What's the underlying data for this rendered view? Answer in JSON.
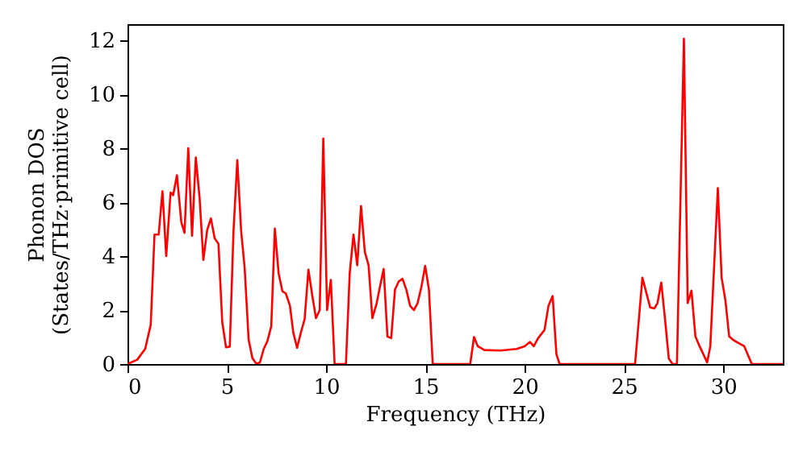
{
  "chart_data": {
    "type": "line",
    "xlabel": "Frequency (THz)",
    "ylabel": "Phonon DOS\n(States/THz·primitive cell)",
    "xlim": [
      0,
      33
    ],
    "ylim": [
      0,
      12.6
    ],
    "xticks": [
      0,
      5,
      10,
      15,
      20,
      25,
      30
    ],
    "yticks": [
      0,
      2,
      4,
      6,
      8,
      10,
      12
    ],
    "marker": "none",
    "line_style": "solid",
    "series": [
      {
        "color": "#ff0000",
        "x": [
          0,
          0.49,
          0.89,
          1.17,
          1.36,
          1.57,
          1.76,
          1.95,
          2.17,
          2.3,
          2.49,
          2.71,
          2.87,
          3.06,
          3.25,
          3.44,
          3.63,
          3.82,
          4.01,
          4.2,
          4.39,
          4.58,
          4.77,
          4.96,
          5.15,
          5.34,
          5.53,
          5.72,
          5.9,
          6.1,
          6.29,
          6.5,
          6.67,
          6.86,
          7.05,
          7.24,
          7.42,
          7.61,
          7.8,
          7.97,
          8.18,
          8.35,
          8.54,
          8.73,
          8.92,
          9.11,
          9.3,
          9.49,
          9.68,
          9.86,
          10.05,
          10.24,
          10.43,
          11.0,
          11.19,
          11.38,
          11.57,
          11.76,
          11.95,
          12.14,
          12.33,
          12.55,
          12.74,
          12.9,
          13.09,
          13.28,
          13.47,
          13.66,
          13.85,
          14.04,
          14.23,
          14.42,
          14.61,
          14.8,
          14.99,
          15.18,
          15.37,
          17.26,
          17.45,
          17.64,
          17.97,
          18.78,
          19.6,
          20.0,
          20.27,
          20.46,
          20.68,
          21.0,
          21.2,
          21.41,
          21.6,
          21.76,
          25.56,
          25.93,
          26.32,
          26.53,
          26.69,
          26.88,
          27.07,
          27.26,
          27.45,
          27.67,
          28.02,
          28.21,
          28.4,
          28.6,
          28.81,
          29.19,
          29.35,
          29.73,
          29.92,
          30.11,
          30.3,
          30.49,
          30.71,
          31.06,
          31.44,
          33.0
        ],
        "values": [
          0,
          0.16,
          0.56,
          1.46,
          4.8,
          4.8,
          6.4,
          4.0,
          6.36,
          6.26,
          7.0,
          5.26,
          4.86,
          8.0,
          4.76,
          7.66,
          6.16,
          3.86,
          4.96,
          5.4,
          4.66,
          4.46,
          1.56,
          0.62,
          0.64,
          4.96,
          7.56,
          4.96,
          3.56,
          0.9,
          0.22,
          0,
          0.06,
          0.56,
          0.86,
          1.4,
          5.02,
          3.36,
          2.7,
          2.62,
          2.16,
          1.16,
          0.6,
          1.16,
          1.66,
          3.5,
          2.56,
          1.7,
          2.0,
          8.36,
          2.0,
          3.12,
          0,
          0,
          3.36,
          4.8,
          3.66,
          5.86,
          4.16,
          3.66,
          1.7,
          2.26,
          2.96,
          3.52,
          1.02,
          0.96,
          2.76,
          3.06,
          3.16,
          2.76,
          2.16,
          2.0,
          2.26,
          2.86,
          3.64,
          2.76,
          0,
          0,
          1.0,
          0.66,
          0.52,
          0.5,
          0.56,
          0.66,
          0.82,
          0.66,
          0.96,
          1.26,
          2.16,
          2.52,
          0.36,
          0,
          0,
          3.2,
          2.1,
          2.06,
          2.26,
          3.02,
          1.66,
          0.2,
          0,
          0,
          12.06,
          2.26,
          2.72,
          1.02,
          0.66,
          0.06,
          0.66,
          6.52,
          3.2,
          2.36,
          1.02,
          0.9,
          0.8,
          0.66,
          0,
          0
        ]
      }
    ]
  }
}
